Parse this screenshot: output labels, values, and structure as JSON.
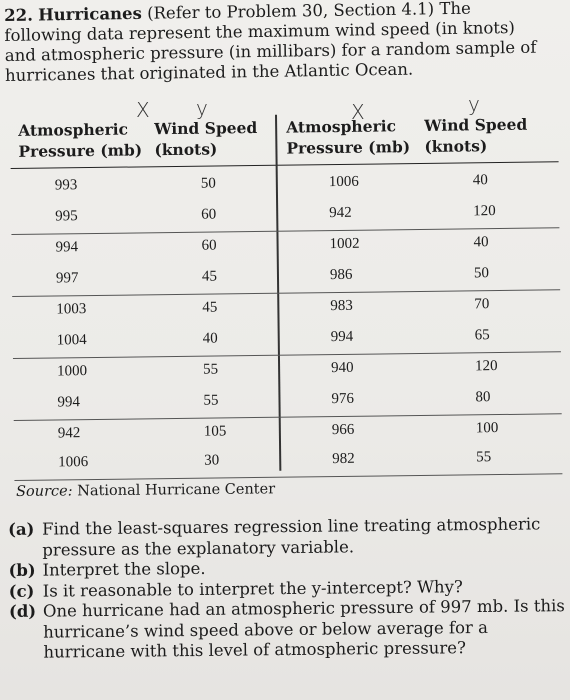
{
  "problem": {
    "number": "22.",
    "title": "Hurricanes",
    "intro_line1": "(Refer to Problem 30, Section 4.1) The",
    "intro_line2": "following data represent the maximum wind speed (in knots)",
    "intro_line3": "and atmospheric pressure (in millibars) for a random sample of",
    "intro_line4": "hurricanes that originated in the Atlantic Ocean."
  },
  "annotations": {
    "x1": "X",
    "y1": "y",
    "x2": "X",
    "y2": "y"
  },
  "table": {
    "headers": [
      {
        "line1": "Atmospheric",
        "line2": "Pressure (mb)"
      },
      {
        "line1": "Wind Speed",
        "line2": "(knots)"
      },
      {
        "line1": "Atmospheric",
        "line2": "Pressure (mb)"
      },
      {
        "line1": "Wind Speed",
        "line2": "(knots)"
      }
    ],
    "rows": [
      [
        "993",
        "50",
        "1006",
        "40"
      ],
      [
        "995",
        "60",
        "942",
        "120"
      ],
      [
        "994",
        "60",
        "1002",
        "40"
      ],
      [
        "997",
        "45",
        "986",
        "50"
      ],
      [
        "1003",
        "45",
        "983",
        "70"
      ],
      [
        "1004",
        "40",
        "994",
        "65"
      ],
      [
        "1000",
        "55",
        "940",
        "120"
      ],
      [
        "994",
        "55",
        "976",
        "80"
      ],
      [
        "942",
        "105",
        "966",
        "100"
      ],
      [
        "1006",
        "30",
        "982",
        "55"
      ]
    ]
  },
  "source": {
    "label": "Source:",
    "text": "National Hurricane Center"
  },
  "parts": [
    {
      "tag": "(a)",
      "text": "Find the least-squares regression line treating atmospheric pressure as the explanatory variable."
    },
    {
      "tag": "(b)",
      "text": "Interpret the slope."
    },
    {
      "tag": "(c)",
      "text": "Is it reasonable to interpret the y-intercept? Why?"
    },
    {
      "tag": "(d)",
      "text": "One hurricane had an atmospheric pressure of 997 mb. Is this hurricane’s wind speed above or below average for a hurricane with this level of atmospheric pressure?"
    }
  ]
}
